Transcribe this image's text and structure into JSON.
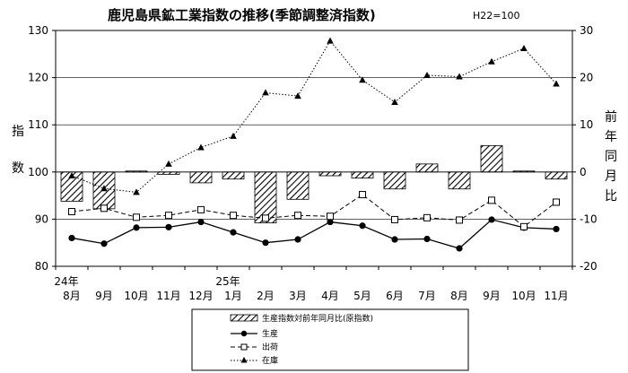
{
  "chart_data": {
    "type": "bar+line",
    "title": "鹿児島県鉱工業指数の推移(季節調整済指数)",
    "subtitle": "H22=100",
    "ylabel_left": "指数",
    "ylabel_right": "前年同月比",
    "ylim_left": [
      80,
      130
    ],
    "yticks_left": [
      80,
      90,
      100,
      110,
      120,
      130
    ],
    "ylim_right": [
      -20,
      30
    ],
    "yticks_right": [
      -20,
      -10,
      0,
      10,
      20,
      30
    ],
    "year_labels": [
      {
        "index": 0,
        "text": "24年"
      },
      {
        "index": 5,
        "text": "25年"
      }
    ],
    "categories": [
      "8月",
      "9月",
      "10月",
      "11月",
      "12月",
      "1月",
      "2月",
      "3月",
      "4月",
      "5月",
      "6月",
      "7月",
      "8月",
      "9月",
      "10月",
      "11月"
    ],
    "bars": {
      "name": "生産指数対前年同月比(原指数)",
      "axis": "right",
      "values": [
        -6.2,
        -7.8,
        0.2,
        -0.5,
        -2.3,
        -1.5,
        -10.8,
        -5.8,
        -0.8,
        -1.3,
        -3.6,
        1.7,
        -3.6,
        5.6,
        0.2,
        -1.5
      ]
    },
    "series": [
      {
        "name": "生産",
        "axis": "left",
        "style": "solid",
        "marker": "filled-circle",
        "values": [
          86.0,
          84.8,
          88.2,
          88.3,
          89.4,
          87.2,
          85.0,
          85.7,
          89.4,
          88.6,
          85.7,
          85.8,
          83.8,
          89.9,
          88.2,
          87.9
        ]
      },
      {
        "name": "出荷",
        "axis": "left",
        "style": "dashed",
        "marker": "open-square",
        "values": [
          91.6,
          92.3,
          90.4,
          90.8,
          92.0,
          90.8,
          90.2,
          90.8,
          90.6,
          95.2,
          89.9,
          90.3,
          89.8,
          94.0,
          88.4,
          93.6
        ]
      },
      {
        "name": "在庫",
        "axis": "right",
        "style": "dotted",
        "marker": "filled-triangle",
        "values": [
          -0.8,
          -3.5,
          -4.3,
          1.7,
          5.2,
          7.6,
          16.8,
          16.1,
          27.8,
          19.5,
          14.8,
          20.5,
          20.2,
          23.4,
          26.2,
          18.7
        ]
      }
    ],
    "grid": true
  }
}
